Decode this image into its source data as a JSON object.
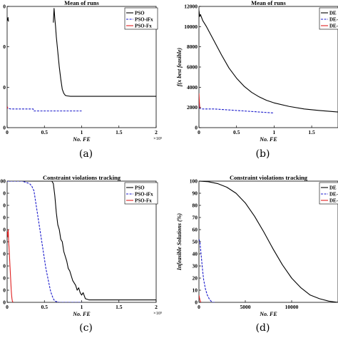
{
  "chart_data": [
    {
      "type": "line",
      "caption": "(a)",
      "title": "Mean of runs",
      "xlabel": "No. FE",
      "ylabel": "",
      "x_multiplier": "×10⁵",
      "xlim": [
        0,
        2
      ],
      "ylim": [
        0,
        12000
      ],
      "xticks": [
        "0",
        "0.5",
        "1",
        "1.5",
        "2"
      ],
      "yticks": [
        "0",
        "0",
        "0",
        "0"
      ],
      "legend_position": "top-right",
      "series": [
        {
          "name": "PSO",
          "color": "#000000",
          "dash": "solid",
          "x": [
            0.005,
            0.012,
            0.018,
            null,
            0.62,
            0.63,
            0.64,
            0.65,
            0.66,
            0.68,
            0.7,
            0.72,
            0.74,
            0.76,
            0.78,
            0.8,
            0.85,
            0.95,
            1.2,
            1.6,
            2.0
          ],
          "y": [
            10600,
            10900,
            10500,
            null,
            10400,
            11800,
            10800,
            10000,
            9000,
            7500,
            6000,
            4800,
            3800,
            3400,
            3200,
            3150,
            3100,
            3100,
            3100,
            3100,
            3100
          ]
        },
        {
          "name": "PSO-iFx",
          "color": "#1a1acc",
          "dash": "dashed",
          "x": [
            0.0,
            0.01,
            0.05,
            0.1,
            0.2,
            0.3,
            0.35,
            0.36,
            0.4,
            0.5,
            0.6,
            0.7,
            0.8,
            0.9,
            1.0
          ],
          "y": [
            2100,
            1900,
            1850,
            1850,
            1850,
            1850,
            1850,
            1650,
            1650,
            1650,
            1650,
            1650,
            1650,
            1650,
            1650
          ]
        },
        {
          "name": "PSO-Fx",
          "color": "#e02020",
          "dash": "solid",
          "x": [
            0.0,
            0.005,
            0.01
          ],
          "y": [
            2100,
            1950,
            1900
          ]
        }
      ]
    },
    {
      "type": "line",
      "caption": "(b)",
      "title": "Mean of runs",
      "xlabel": "No. FE",
      "ylabel": "f(x best feasible)",
      "xlim": [
        0,
        1.85
      ],
      "ylim": [
        0,
        12000
      ],
      "xticks": [
        "0",
        "0.5",
        "1",
        "1.5"
      ],
      "yticks": [
        "0",
        "2000",
        "4000",
        "6000",
        "8000",
        "10000",
        "12000"
      ],
      "legend_position": "top-right",
      "series": [
        {
          "name": "DE",
          "color": "#000000",
          "dash": "solid",
          "x": [
            0.0,
            0.01,
            0.02,
            0.05,
            0.1,
            0.2,
            0.3,
            0.4,
            0.5,
            0.6,
            0.7,
            0.8,
            0.9,
            1.0,
            1.2,
            1.4,
            1.6,
            1.85
          ],
          "y": [
            11600,
            11000,
            11200,
            10600,
            10000,
            8600,
            7200,
            5900,
            4900,
            4100,
            3500,
            3050,
            2700,
            2450,
            2100,
            1850,
            1700,
            1550
          ]
        },
        {
          "name": "DE-",
          "color": "#1a1acc",
          "dash": "dashed",
          "x": [
            0.0,
            0.01,
            0.05,
            0.1,
            0.2,
            0.3,
            0.4,
            0.5,
            0.6,
            0.7,
            0.8,
            0.9,
            1.0
          ],
          "y": [
            2300,
            1900,
            1850,
            1850,
            1850,
            1800,
            1750,
            1700,
            1650,
            1600,
            1550,
            1500,
            1450
          ]
        },
        {
          "name": "DE-",
          "color": "#e02020",
          "dash": "solid",
          "x": [
            0.0,
            0.005,
            0.01,
            0.015
          ],
          "y": [
            3400,
            2600,
            2000,
            1900
          ]
        }
      ]
    },
    {
      "type": "line",
      "caption": "(c)",
      "title": "Constraint violations tracking",
      "xlabel": "No. FE",
      "ylabel": "",
      "x_multiplier": "×10⁵",
      "xlim": [
        0,
        2
      ],
      "ylim": [
        0,
        100
      ],
      "xticks": [
        "0",
        "0.5",
        "1",
        "1.5",
        "2"
      ],
      "yticks": [
        "0",
        "0",
        "0",
        "0",
        "0",
        "0",
        "0",
        "0",
        "0",
        "0",
        "00"
      ],
      "legend_position": "top-right",
      "series": [
        {
          "name": "PSO",
          "color": "#000000",
          "dash": "solid",
          "x": [
            0.0,
            0.1,
            0.3,
            0.5,
            0.6,
            0.62,
            0.64,
            0.66,
            0.68,
            0.7,
            0.72,
            0.74,
            0.76,
            0.78,
            0.8,
            0.82,
            0.84,
            0.86,
            0.88,
            0.9,
            0.92,
            0.94,
            0.96,
            0.98,
            1.0,
            1.02,
            1.05,
            1.1,
            1.5,
            2.0
          ],
          "y": [
            100,
            100,
            100,
            100,
            100,
            98,
            88,
            74,
            64,
            60,
            52,
            50,
            42,
            38,
            34,
            28,
            26,
            22,
            18,
            16,
            14,
            10,
            12,
            8,
            6,
            8,
            3,
            2,
            2,
            2
          ]
        },
        {
          "name": "PSO-iFx",
          "color": "#1a1acc",
          "dash": "dashed",
          "x": [
            0.0,
            0.1,
            0.2,
            0.3,
            0.33,
            0.36,
            0.38,
            0.4,
            0.42,
            0.44,
            0.46,
            0.48,
            0.5,
            0.52,
            0.54,
            0.56,
            0.58,
            0.6,
            0.62,
            0.64,
            0.7,
            1.0
          ],
          "y": [
            100,
            100,
            100,
            98,
            96,
            92,
            84,
            76,
            68,
            60,
            52,
            44,
            36,
            28,
            22,
            16,
            10,
            6,
            3,
            1,
            0,
            0
          ]
        },
        {
          "name": "PSO-Fx",
          "color": "#e02020",
          "dash": "solid",
          "x": [
            0.0,
            0.005,
            0.01,
            0.015,
            0.02,
            0.025,
            0.03,
            0.035,
            0.04,
            0.045,
            0.05,
            0.055,
            0.06,
            0.065,
            0.07,
            0.08
          ],
          "y": [
            56,
            58,
            54,
            60,
            50,
            46,
            40,
            34,
            28,
            22,
            16,
            10,
            6,
            3,
            1,
            0
          ]
        }
      ]
    },
    {
      "type": "line",
      "caption": "(d)",
      "title": "Constraint violations tracking",
      "xlabel": "No. FE",
      "ylabel": "Infeasible Solutions (%)",
      "xlim": [
        0,
        15000
      ],
      "ylim": [
        0,
        100
      ],
      "xticks": [
        "0",
        "5000",
        "10000"
      ],
      "yticks": [
        "0",
        "10",
        "20",
        "30",
        "40",
        "50",
        "60",
        "70",
        "80",
        "90",
        "100"
      ],
      "legend_position": "top-right",
      "series": [
        {
          "name": "DE",
          "color": "#000000",
          "dash": "solid",
          "x": [
            0,
            1000,
            2000,
            3000,
            4000,
            5000,
            6000,
            7000,
            8000,
            9000,
            10000,
            11000,
            12000,
            13000,
            14000,
            15000
          ],
          "y": [
            100,
            99.5,
            98,
            95,
            90,
            82,
            71,
            58,
            44,
            31,
            20,
            12,
            6,
            3,
            1,
            0
          ]
        },
        {
          "name": "DE-",
          "color": "#1a1acc",
          "dash": "dashed",
          "x": [
            0,
            100,
            200,
            300,
            400,
            500,
            700,
            900,
            1100,
            1300,
            1500,
            1800
          ],
          "y": [
            52,
            50,
            42,
            34,
            26,
            19,
            11,
            6,
            3,
            1,
            0,
            0
          ]
        },
        {
          "name": "DE-",
          "color": "#e02020",
          "dash": "solid",
          "x": [
            0,
            50,
            100,
            150,
            200
          ],
          "y": [
            6,
            4,
            2,
            1,
            0
          ]
        }
      ]
    }
  ]
}
